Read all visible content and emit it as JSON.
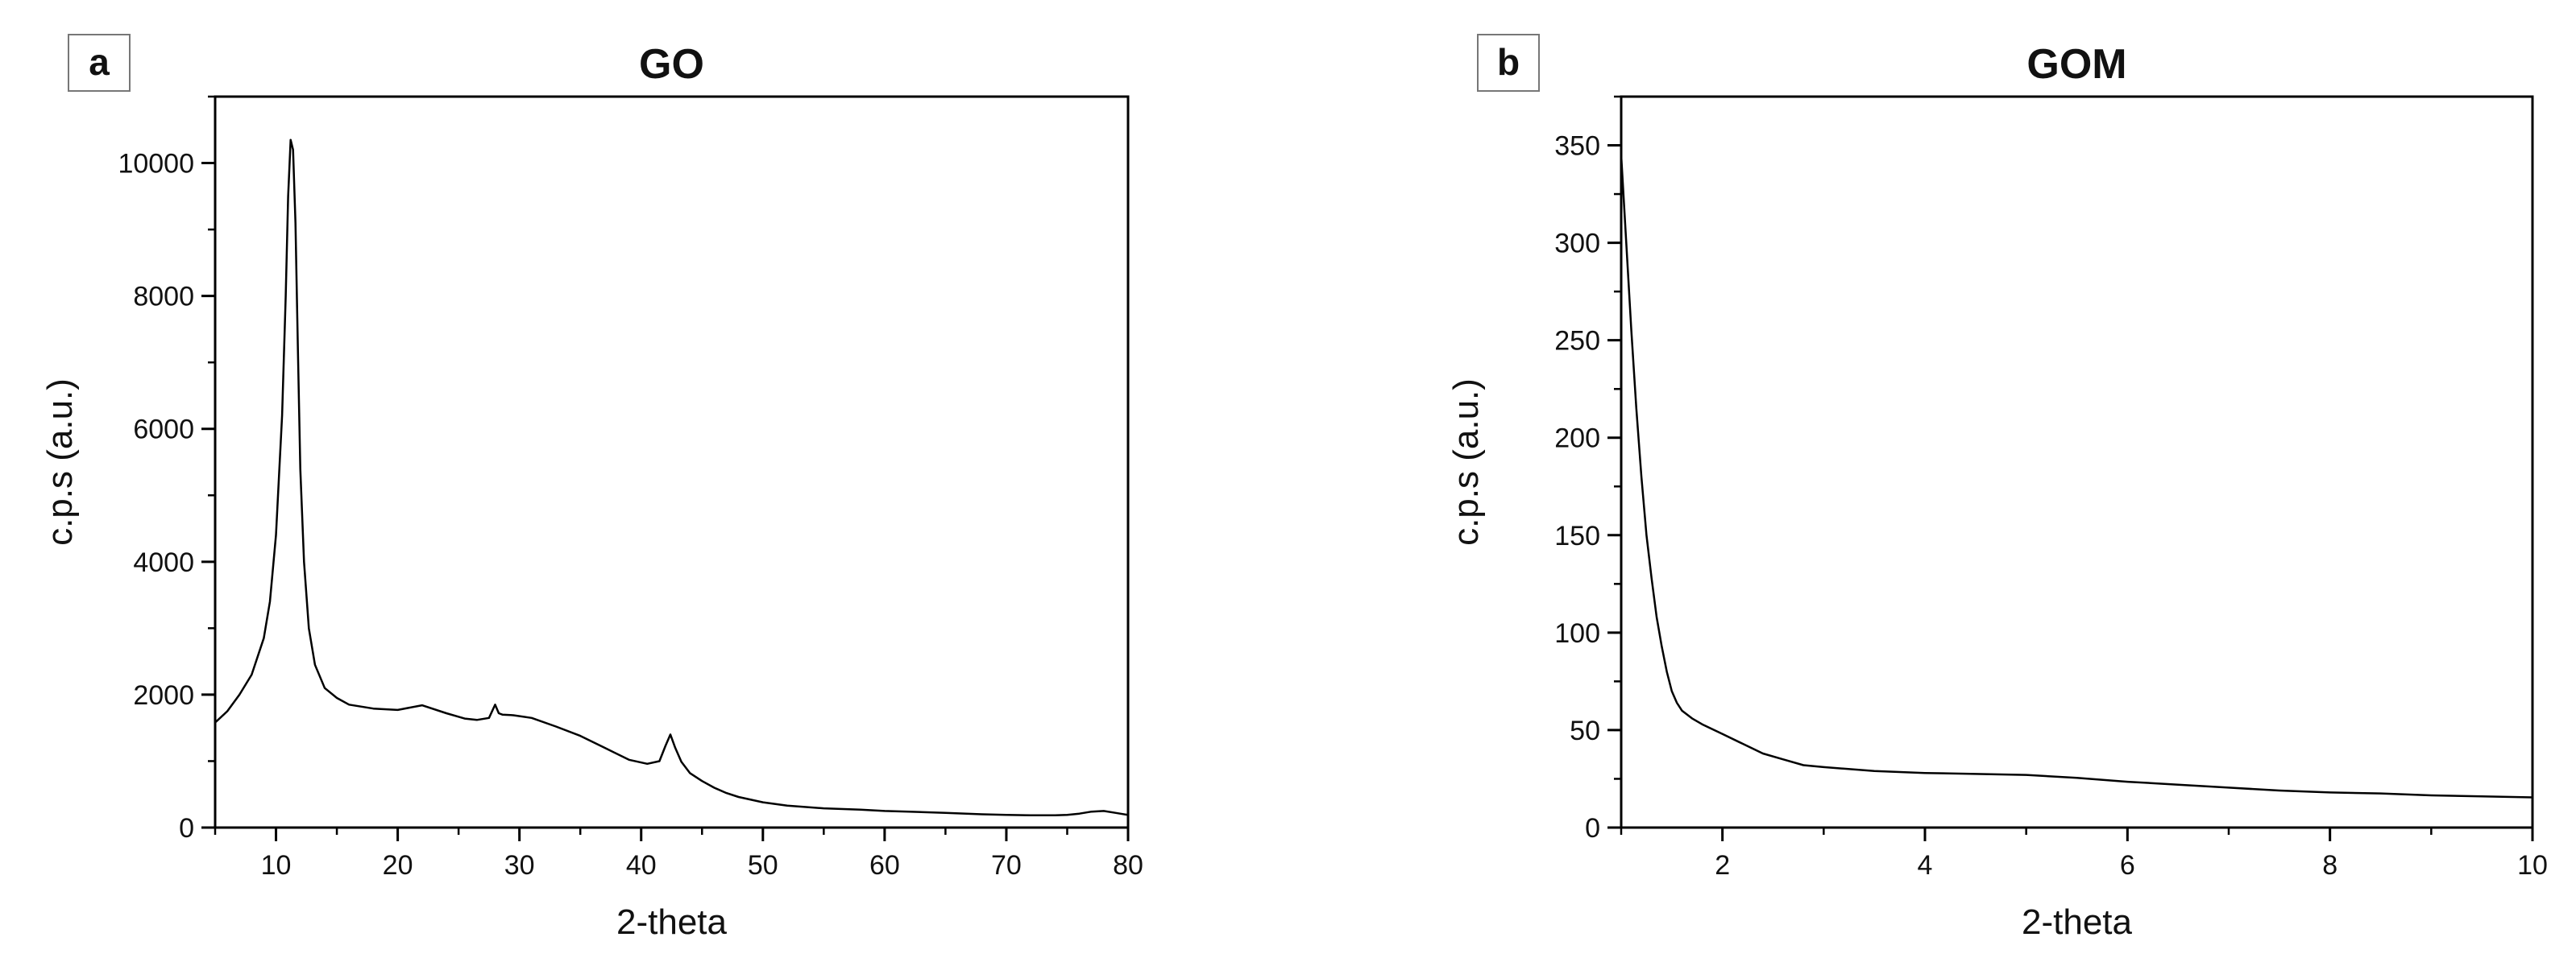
{
  "chart_data": [
    {
      "panel": "a",
      "type": "line",
      "title": "GO",
      "xlabel": "2-theta",
      "ylabel": "c.p.s (a.u.)",
      "xlim": [
        5,
        80
      ],
      "ylim": [
        0,
        11000
      ],
      "xticks": [
        10,
        20,
        30,
        40,
        50,
        60,
        70,
        80
      ],
      "yticks": [
        0,
        2000,
        4000,
        6000,
        8000,
        10000
      ],
      "grid": false,
      "series": [
        {
          "color": "#000000",
          "x": [
            5,
            6,
            7,
            8,
            9,
            9.5,
            10,
            10.5,
            10.8,
            11,
            11.2,
            11.4,
            11.6,
            11.8,
            12,
            12.3,
            12.7,
            13.2,
            14,
            15,
            16,
            18,
            20,
            22,
            24,
            25.5,
            26.5,
            27.5,
            28,
            28.3,
            28.6,
            29.5,
            31,
            33,
            35,
            37,
            39,
            40.5,
            41.5,
            42,
            42.4,
            42.8,
            43.3,
            44,
            45,
            46,
            47,
            48,
            50,
            52,
            55,
            58,
            60,
            62,
            65,
            68,
            70,
            72,
            74,
            75,
            76,
            77,
            78,
            79,
            80
          ],
          "y": [
            1580,
            1750,
            2000,
            2300,
            2850,
            3400,
            4400,
            6200,
            8000,
            9500,
            10350,
            10200,
            9100,
            7200,
            5400,
            4000,
            3000,
            2450,
            2100,
            1950,
            1850,
            1790,
            1770,
            1840,
            1720,
            1640,
            1620,
            1650,
            1850,
            1720,
            1700,
            1690,
            1650,
            1520,
            1380,
            1200,
            1020,
            960,
            1000,
            1230,
            1400,
            1200,
            990,
            820,
            700,
            600,
            520,
            460,
            380,
            330,
            290,
            270,
            250,
            240,
            220,
            200,
            190,
            185,
            185,
            190,
            210,
            240,
            250,
            220,
            190
          ]
        }
      ]
    },
    {
      "panel": "b",
      "type": "line",
      "title": "GOM",
      "xlabel": "2-theta",
      "ylabel": "c.p.s (a.u.)",
      "xlim": [
        1,
        10
      ],
      "ylim": [
        0,
        375
      ],
      "xticks": [
        2,
        4,
        6,
        8,
        10
      ],
      "yticks": [
        0,
        50,
        100,
        150,
        200,
        250,
        300,
        350
      ],
      "grid": false,
      "series": [
        {
          "color": "#000000",
          "x": [
            1.0,
            1.05,
            1.1,
            1.15,
            1.2,
            1.25,
            1.3,
            1.35,
            1.4,
            1.45,
            1.5,
            1.55,
            1.6,
            1.7,
            1.8,
            2.0,
            2.2,
            2.4,
            2.6,
            2.8,
            3.0,
            3.5,
            4.0,
            4.5,
            5.0,
            5.5,
            6.0,
            6.5,
            7.0,
            7.5,
            8.0,
            8.5,
            9.0,
            9.5,
            10.0
          ],
          "y": [
            345,
            300,
            255,
            215,
            180,
            150,
            128,
            108,
            93,
            80,
            70,
            64,
            60,
            56,
            53,
            48,
            43,
            38,
            35,
            32,
            31,
            29,
            28,
            27.5,
            27,
            25.5,
            23.5,
            22,
            20.5,
            19,
            18,
            17.5,
            16.5,
            16,
            15.5
          ]
        }
      ]
    }
  ]
}
